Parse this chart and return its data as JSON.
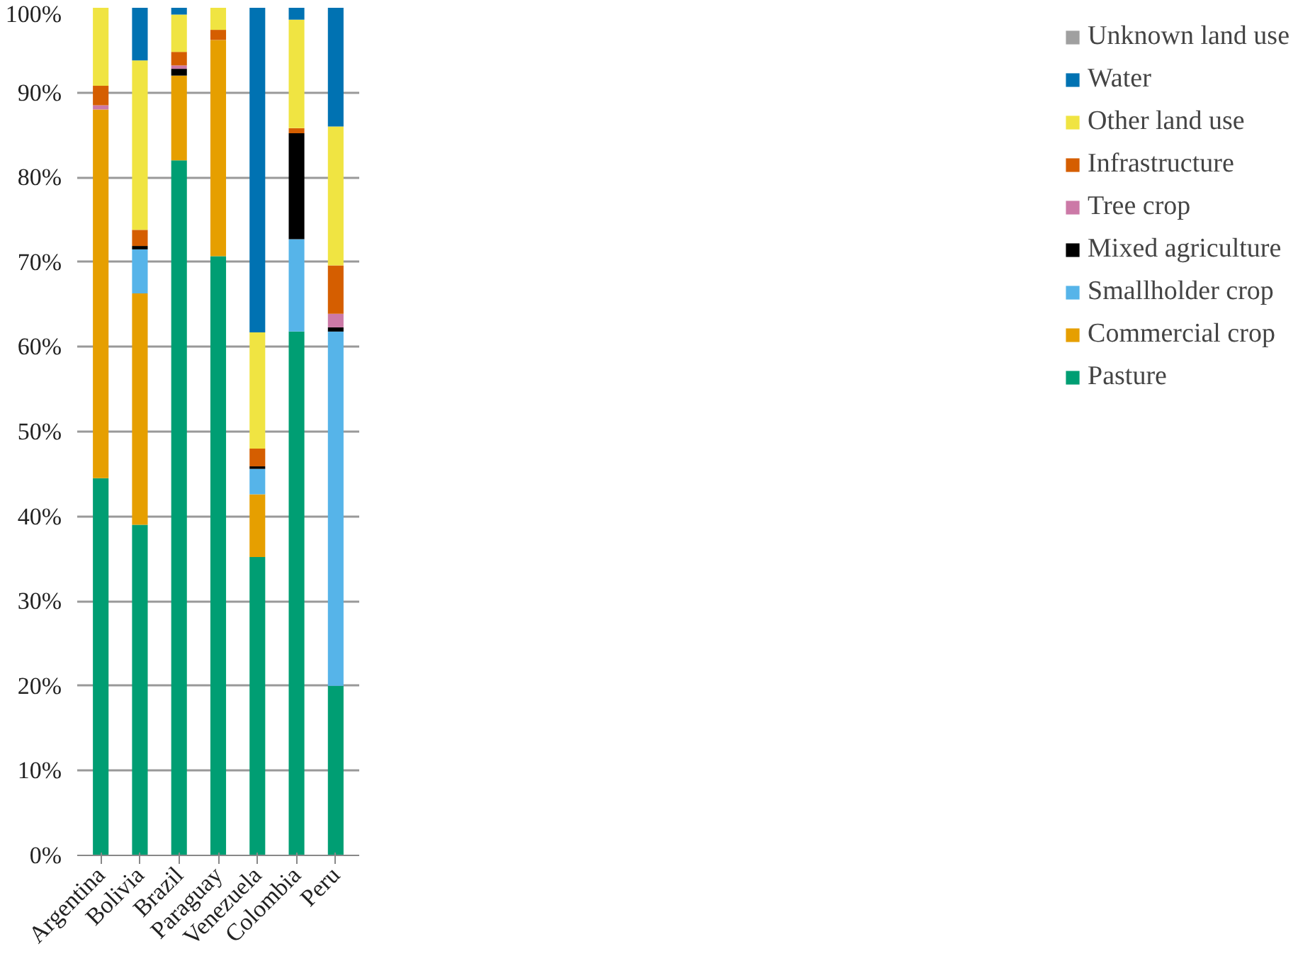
{
  "chart_data": {
    "type": "bar",
    "stacked": true,
    "categories": [
      "Argentina",
      "Bolivia",
      "Brazil",
      "Paraguay",
      "Venezuela",
      "Colombia",
      "Peru"
    ],
    "series": [
      {
        "name": "Pasture",
        "color": "#009e73",
        "values": [
          44.5,
          39,
          82,
          70.7,
          35.2,
          61.8,
          20
        ]
      },
      {
        "name": "Commercial crop",
        "color": "#e69f00",
        "values": [
          43.5,
          27.3,
          10,
          25.5,
          7.4,
          0,
          0
        ]
      },
      {
        "name": "Smallholder crop",
        "color": "#56b4e9",
        "values": [
          0,
          5.2,
          0,
          0,
          3,
          10.9,
          41.8
        ]
      },
      {
        "name": "Mixed agriculture",
        "color": "#000000",
        "values": [
          0,
          0.4,
          0.8,
          0,
          0.3,
          12.5,
          0.5
        ]
      },
      {
        "name": "Tree crop",
        "color": "#cc79a7",
        "values": [
          0.5,
          0,
          0.4,
          0,
          0,
          0,
          1.6
        ]
      },
      {
        "name": "Infrastructure",
        "color": "#d55e00",
        "values": [
          2.3,
          1.9,
          1.6,
          1.2,
          2.1,
          0.6,
          5.7
        ]
      },
      {
        "name": "Other land use",
        "color": "#f0e442",
        "values": [
          9.2,
          20,
          4.4,
          2.6,
          13.7,
          12.8,
          16.4
        ]
      },
      {
        "name": "Water",
        "color": "#0072b2",
        "values": [
          0,
          6.2,
          0.8,
          0,
          38.3,
          1.4,
          14
        ]
      },
      {
        "name": "Unknown land use",
        "color": "#a0a0a0",
        "values": [
          0,
          0,
          0,
          0,
          0,
          0,
          0
        ]
      }
    ],
    "ylim": [
      0,
      100
    ],
    "yticks": [
      {
        "value": 0,
        "label": "0%"
      },
      {
        "value": 10,
        "label": "10%"
      },
      {
        "value": 20,
        "label": "20%"
      },
      {
        "value": 30,
        "label": "30%"
      },
      {
        "value": 40,
        "label": "40%"
      },
      {
        "value": 50,
        "label": "50%"
      },
      {
        "value": 60,
        "label": "60%"
      },
      {
        "value": 70,
        "label": "70%"
      },
      {
        "value": 80,
        "label": "80%"
      },
      {
        "value": 90,
        "label": "90%"
      },
      {
        "value": 100,
        "label": "100%"
      }
    ],
    "grid": "y",
    "legend": "right"
  }
}
